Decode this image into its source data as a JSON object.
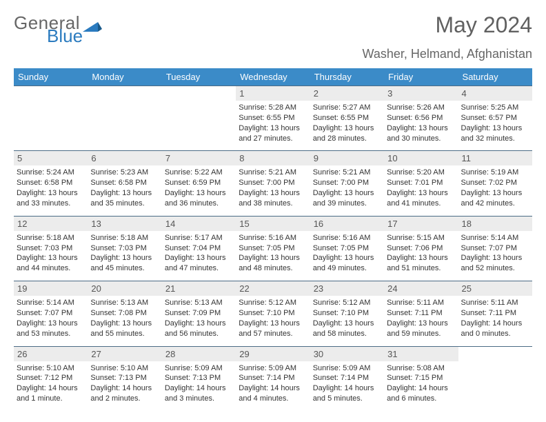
{
  "brand": {
    "part1": "General",
    "part2": "Blue"
  },
  "month_title": "May 2024",
  "location": "Washer, Helmand, Afghanistan",
  "colors": {
    "header_bg": "#3b8bc8",
    "daynum_bg": "#ececec",
    "rule": "#4a6a85"
  },
  "weekdays": [
    "Sunday",
    "Monday",
    "Tuesday",
    "Wednesday",
    "Thursday",
    "Friday",
    "Saturday"
  ],
  "weeks": [
    [
      null,
      null,
      null,
      {
        "n": "1",
        "sr": "5:28 AM",
        "ss": "6:55 PM",
        "dl": "13 hours and 27 minutes."
      },
      {
        "n": "2",
        "sr": "5:27 AM",
        "ss": "6:55 PM",
        "dl": "13 hours and 28 minutes."
      },
      {
        "n": "3",
        "sr": "5:26 AM",
        "ss": "6:56 PM",
        "dl": "13 hours and 30 minutes."
      },
      {
        "n": "4",
        "sr": "5:25 AM",
        "ss": "6:57 PM",
        "dl": "13 hours and 32 minutes."
      }
    ],
    [
      {
        "n": "5",
        "sr": "5:24 AM",
        "ss": "6:58 PM",
        "dl": "13 hours and 33 minutes."
      },
      {
        "n": "6",
        "sr": "5:23 AM",
        "ss": "6:58 PM",
        "dl": "13 hours and 35 minutes."
      },
      {
        "n": "7",
        "sr": "5:22 AM",
        "ss": "6:59 PM",
        "dl": "13 hours and 36 minutes."
      },
      {
        "n": "8",
        "sr": "5:21 AM",
        "ss": "7:00 PM",
        "dl": "13 hours and 38 minutes."
      },
      {
        "n": "9",
        "sr": "5:21 AM",
        "ss": "7:00 PM",
        "dl": "13 hours and 39 minutes."
      },
      {
        "n": "10",
        "sr": "5:20 AM",
        "ss": "7:01 PM",
        "dl": "13 hours and 41 minutes."
      },
      {
        "n": "11",
        "sr": "5:19 AM",
        "ss": "7:02 PM",
        "dl": "13 hours and 42 minutes."
      }
    ],
    [
      {
        "n": "12",
        "sr": "5:18 AM",
        "ss": "7:03 PM",
        "dl": "13 hours and 44 minutes."
      },
      {
        "n": "13",
        "sr": "5:18 AM",
        "ss": "7:03 PM",
        "dl": "13 hours and 45 minutes."
      },
      {
        "n": "14",
        "sr": "5:17 AM",
        "ss": "7:04 PM",
        "dl": "13 hours and 47 minutes."
      },
      {
        "n": "15",
        "sr": "5:16 AM",
        "ss": "7:05 PM",
        "dl": "13 hours and 48 minutes."
      },
      {
        "n": "16",
        "sr": "5:16 AM",
        "ss": "7:05 PM",
        "dl": "13 hours and 49 minutes."
      },
      {
        "n": "17",
        "sr": "5:15 AM",
        "ss": "7:06 PM",
        "dl": "13 hours and 51 minutes."
      },
      {
        "n": "18",
        "sr": "5:14 AM",
        "ss": "7:07 PM",
        "dl": "13 hours and 52 minutes."
      }
    ],
    [
      {
        "n": "19",
        "sr": "5:14 AM",
        "ss": "7:07 PM",
        "dl": "13 hours and 53 minutes."
      },
      {
        "n": "20",
        "sr": "5:13 AM",
        "ss": "7:08 PM",
        "dl": "13 hours and 55 minutes."
      },
      {
        "n": "21",
        "sr": "5:13 AM",
        "ss": "7:09 PM",
        "dl": "13 hours and 56 minutes."
      },
      {
        "n": "22",
        "sr": "5:12 AM",
        "ss": "7:10 PM",
        "dl": "13 hours and 57 minutes."
      },
      {
        "n": "23",
        "sr": "5:12 AM",
        "ss": "7:10 PM",
        "dl": "13 hours and 58 minutes."
      },
      {
        "n": "24",
        "sr": "5:11 AM",
        "ss": "7:11 PM",
        "dl": "13 hours and 59 minutes."
      },
      {
        "n": "25",
        "sr": "5:11 AM",
        "ss": "7:11 PM",
        "dl": "14 hours and 0 minutes."
      }
    ],
    [
      {
        "n": "26",
        "sr": "5:10 AM",
        "ss": "7:12 PM",
        "dl": "14 hours and 1 minute."
      },
      {
        "n": "27",
        "sr": "5:10 AM",
        "ss": "7:13 PM",
        "dl": "14 hours and 2 minutes."
      },
      {
        "n": "28",
        "sr": "5:09 AM",
        "ss": "7:13 PM",
        "dl": "14 hours and 3 minutes."
      },
      {
        "n": "29",
        "sr": "5:09 AM",
        "ss": "7:14 PM",
        "dl": "14 hours and 4 minutes."
      },
      {
        "n": "30",
        "sr": "5:09 AM",
        "ss": "7:14 PM",
        "dl": "14 hours and 5 minutes."
      },
      {
        "n": "31",
        "sr": "5:08 AM",
        "ss": "7:15 PM",
        "dl": "14 hours and 6 minutes."
      },
      null
    ]
  ],
  "labels": {
    "sunrise": "Sunrise: ",
    "sunset": "Sunset: ",
    "daylight": "Daylight: "
  }
}
